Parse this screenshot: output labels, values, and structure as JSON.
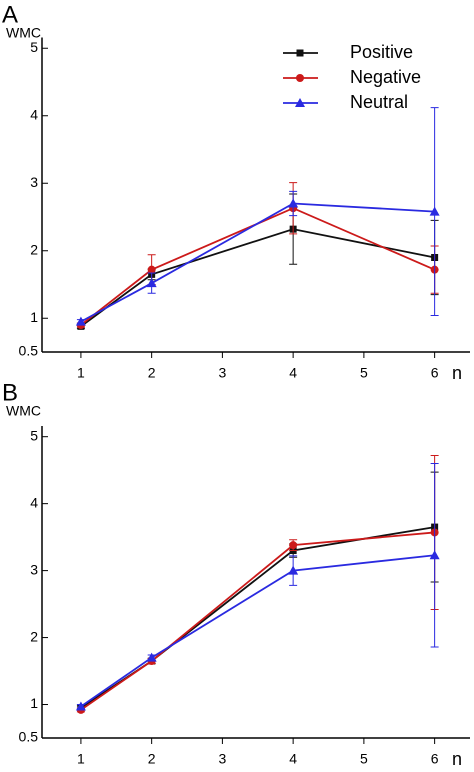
{
  "chart_data": [
    {
      "type": "line",
      "panel": "A",
      "ylabel": "WMC",
      "xlabel": "n",
      "legend": true,
      "x": [
        1,
        2,
        4,
        6
      ],
      "xlim": [
        0.45,
        6.5
      ],
      "xticks": [
        1,
        2,
        3,
        4,
        5,
        6
      ],
      "ylim": [
        0.5,
        5.1
      ],
      "yticks": [
        0.5,
        1,
        2,
        3,
        4,
        5
      ],
      "series": [
        {
          "name": "Positive",
          "color": "#111111",
          "marker": "square",
          "values": [
            0.88,
            1.65,
            2.32,
            1.9
          ],
          "errors": [
            0.03,
            0.08,
            0.52,
            0.55
          ]
        },
        {
          "name": "Negative",
          "color": "#cc1a1a",
          "marker": "circle",
          "values": [
            0.9,
            1.72,
            2.63,
            1.72
          ],
          "errors": [
            0.03,
            0.22,
            0.38,
            0.35
          ]
        },
        {
          "name": "Neutral",
          "color": "#2a2ae0",
          "marker": "triangle",
          "values": [
            0.95,
            1.52,
            2.7,
            2.58
          ],
          "errors": [
            0.03,
            0.15,
            0.18,
            1.54
          ]
        }
      ]
    },
    {
      "type": "line",
      "panel": "B",
      "ylabel": "WMC",
      "xlabel": "n",
      "legend": false,
      "x": [
        1,
        2,
        4,
        6
      ],
      "xlim": [
        0.45,
        6.5
      ],
      "xticks": [
        1,
        2,
        3,
        4,
        5,
        6
      ],
      "ylim": [
        0.5,
        5.1
      ],
      "yticks": [
        0.5,
        1,
        2,
        3,
        4,
        5
      ],
      "series": [
        {
          "name": "Positive",
          "color": "#111111",
          "marker": "square",
          "values": [
            0.95,
            1.65,
            3.3,
            3.65
          ],
          "errors": [
            0.03,
            0.04,
            0.1,
            0.82
          ]
        },
        {
          "name": "Negative",
          "color": "#cc1a1a",
          "marker": "circle",
          "values": [
            0.92,
            1.65,
            3.38,
            3.57
          ],
          "errors": [
            0.03,
            0.04,
            0.08,
            1.15
          ]
        },
        {
          "name": "Neutral",
          "color": "#2a2ae0",
          "marker": "triangle",
          "values": [
            0.97,
            1.7,
            3.0,
            3.23
          ],
          "errors": [
            0.03,
            0.04,
            0.22,
            1.37
          ]
        }
      ]
    }
  ]
}
